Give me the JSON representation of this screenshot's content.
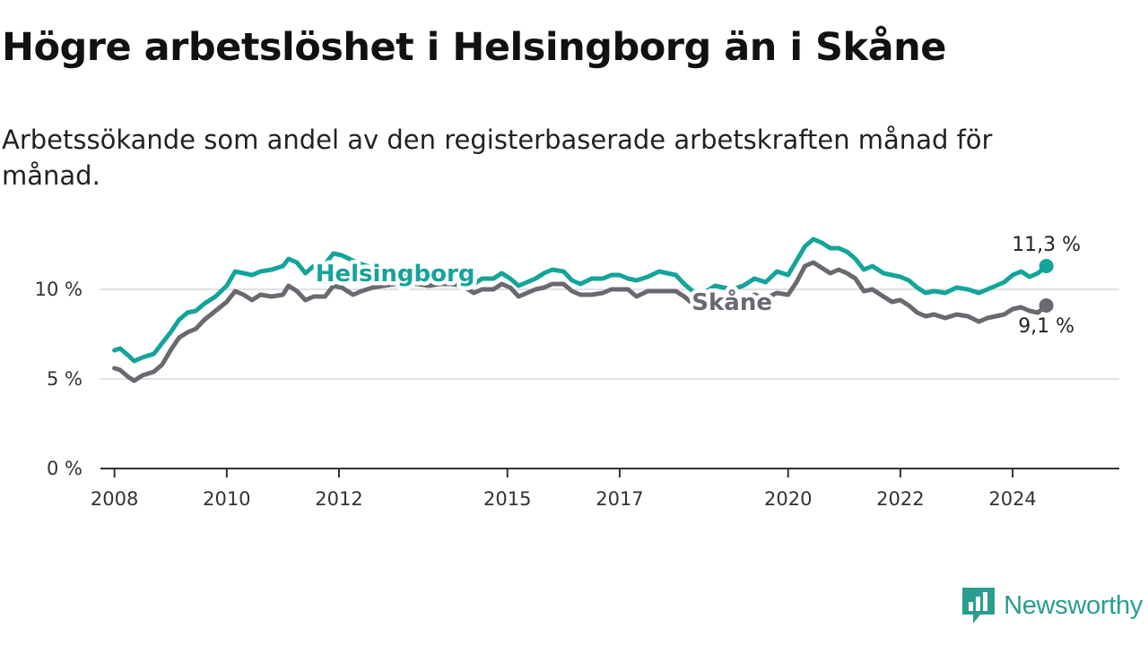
{
  "header": {
    "title": "Högre arbetslöshet i Helsingborg än i Skåne",
    "subtitle": "Arbetssökande som andel av den registerbaserade arbetskraften månad för månad."
  },
  "brand": {
    "name": "Newsworthy",
    "color": "#2a9d8f"
  },
  "chart_data": {
    "type": "line",
    "title": "Högre arbetslöshet i Helsingborg än i Skåne",
    "subtitle": "Arbetssökande som andel av den registerbaserade arbetskraften månad för månad.",
    "xlabel": "",
    "ylabel": "",
    "xlim": [
      2007.75,
      2025.9
    ],
    "ylim": [
      0,
      13.5
    ],
    "grid": true,
    "x_ticks": [
      2008,
      2010,
      2012,
      2015,
      2017,
      2020,
      2022,
      2024
    ],
    "x_tick_labels": [
      "2008",
      "2010",
      "2012",
      "2015",
      "2017",
      "2020",
      "2022",
      "2024"
    ],
    "y_ticks": [
      0,
      5,
      10
    ],
    "y_tick_labels": [
      "0 %",
      "5 %",
      "10 %"
    ],
    "series": [
      {
        "name": "Helsingborg",
        "label": "Helsingborg",
        "color": "#13a49a",
        "end_label": "11,3 %",
        "points": [
          [
            2008.0,
            6.6
          ],
          [
            2008.1,
            6.7
          ],
          [
            2008.25,
            6.3
          ],
          [
            2008.35,
            6.0
          ],
          [
            2008.5,
            6.2
          ],
          [
            2008.7,
            6.4
          ],
          [
            2008.85,
            7.0
          ],
          [
            2009.0,
            7.6
          ],
          [
            2009.15,
            8.3
          ],
          [
            2009.3,
            8.7
          ],
          [
            2009.45,
            8.8
          ],
          [
            2009.6,
            9.2
          ],
          [
            2009.8,
            9.6
          ],
          [
            2010.0,
            10.2
          ],
          [
            2010.15,
            11.0
          ],
          [
            2010.3,
            10.9
          ],
          [
            2010.45,
            10.8
          ],
          [
            2010.6,
            11.0
          ],
          [
            2010.8,
            11.1
          ],
          [
            2011.0,
            11.3
          ],
          [
            2011.1,
            11.7
          ],
          [
            2011.25,
            11.5
          ],
          [
            2011.4,
            10.9
          ],
          [
            2011.55,
            11.3
          ],
          [
            2011.75,
            11.4
          ],
          [
            2011.9,
            12.0
          ],
          [
            2012.05,
            11.9
          ],
          [
            2012.25,
            11.6
          ],
          [
            2012.4,
            11.4
          ],
          [
            2012.6,
            11.2
          ],
          [
            2012.8,
            11.0
          ],
          [
            2013.0,
            10.9
          ],
          [
            2013.2,
            10.7
          ],
          [
            2013.4,
            10.9
          ],
          [
            2013.6,
            10.7
          ],
          [
            2013.8,
            10.8
          ],
          [
            2014.0,
            10.7
          ],
          [
            2014.2,
            10.8
          ],
          [
            2014.4,
            10.3
          ],
          [
            2014.55,
            10.6
          ],
          [
            2014.75,
            10.6
          ],
          [
            2014.9,
            10.9
          ],
          [
            2015.05,
            10.6
          ],
          [
            2015.2,
            10.2
          ],
          [
            2015.35,
            10.4
          ],
          [
            2015.5,
            10.6
          ],
          [
            2015.65,
            10.9
          ],
          [
            2015.8,
            11.1
          ],
          [
            2016.0,
            11.0
          ],
          [
            2016.15,
            10.5
          ],
          [
            2016.3,
            10.3
          ],
          [
            2016.5,
            10.6
          ],
          [
            2016.7,
            10.6
          ],
          [
            2016.85,
            10.8
          ],
          [
            2017.0,
            10.8
          ],
          [
            2017.15,
            10.6
          ],
          [
            2017.3,
            10.5
          ],
          [
            2017.5,
            10.7
          ],
          [
            2017.7,
            11.0
          ],
          [
            2017.85,
            10.9
          ],
          [
            2018.0,
            10.8
          ],
          [
            2018.15,
            10.3
          ],
          [
            2018.3,
            9.9
          ],
          [
            2018.5,
            9.8
          ],
          [
            2018.7,
            10.2
          ],
          [
            2018.85,
            10.1
          ],
          [
            2019.0,
            10.0
          ],
          [
            2019.2,
            10.2
          ],
          [
            2019.4,
            10.6
          ],
          [
            2019.6,
            10.4
          ],
          [
            2019.8,
            11.0
          ],
          [
            2020.0,
            10.8
          ],
          [
            2020.15,
            11.6
          ],
          [
            2020.3,
            12.4
          ],
          [
            2020.45,
            12.8
          ],
          [
            2020.6,
            12.6
          ],
          [
            2020.75,
            12.3
          ],
          [
            2020.9,
            12.3
          ],
          [
            2021.05,
            12.1
          ],
          [
            2021.2,
            11.7
          ],
          [
            2021.35,
            11.1
          ],
          [
            2021.5,
            11.3
          ],
          [
            2021.7,
            10.9
          ],
          [
            2021.85,
            10.8
          ],
          [
            2022.0,
            10.7
          ],
          [
            2022.15,
            10.5
          ],
          [
            2022.3,
            10.1
          ],
          [
            2022.45,
            9.8
          ],
          [
            2022.6,
            9.9
          ],
          [
            2022.8,
            9.8
          ],
          [
            2023.0,
            10.1
          ],
          [
            2023.2,
            10.0
          ],
          [
            2023.4,
            9.8
          ],
          [
            2023.55,
            10.0
          ],
          [
            2023.7,
            10.2
          ],
          [
            2023.85,
            10.4
          ],
          [
            2024.0,
            10.8
          ],
          [
            2024.15,
            11.0
          ],
          [
            2024.3,
            10.7
          ],
          [
            2024.45,
            10.9
          ],
          [
            2024.6,
            11.3
          ]
        ]
      },
      {
        "name": "Skåne",
        "label": "Skåne",
        "color": "#6b6870",
        "end_label": "9,1 %",
        "points": [
          [
            2008.0,
            5.6
          ],
          [
            2008.1,
            5.5
          ],
          [
            2008.25,
            5.1
          ],
          [
            2008.35,
            4.9
          ],
          [
            2008.5,
            5.2
          ],
          [
            2008.7,
            5.4
          ],
          [
            2008.85,
            5.8
          ],
          [
            2009.0,
            6.6
          ],
          [
            2009.15,
            7.3
          ],
          [
            2009.3,
            7.6
          ],
          [
            2009.45,
            7.8
          ],
          [
            2009.6,
            8.3
          ],
          [
            2009.8,
            8.8
          ],
          [
            2010.0,
            9.3
          ],
          [
            2010.15,
            9.9
          ],
          [
            2010.3,
            9.7
          ],
          [
            2010.45,
            9.4
          ],
          [
            2010.6,
            9.7
          ],
          [
            2010.8,
            9.6
          ],
          [
            2011.0,
            9.7
          ],
          [
            2011.1,
            10.2
          ],
          [
            2011.25,
            9.9
          ],
          [
            2011.4,
            9.4
          ],
          [
            2011.55,
            9.6
          ],
          [
            2011.75,
            9.6
          ],
          [
            2011.9,
            10.2
          ],
          [
            2012.05,
            10.1
          ],
          [
            2012.25,
            9.7
          ],
          [
            2012.4,
            9.9
          ],
          [
            2012.6,
            10.1
          ],
          [
            2012.8,
            10.2
          ],
          [
            2013.0,
            10.3
          ],
          [
            2013.2,
            10.4
          ],
          [
            2013.4,
            10.3
          ],
          [
            2013.6,
            10.2
          ],
          [
            2013.8,
            10.3
          ],
          [
            2014.0,
            10.3
          ],
          [
            2014.2,
            10.2
          ],
          [
            2014.4,
            9.8
          ],
          [
            2014.55,
            10.0
          ],
          [
            2014.75,
            10.0
          ],
          [
            2014.9,
            10.3
          ],
          [
            2015.05,
            10.1
          ],
          [
            2015.2,
            9.6
          ],
          [
            2015.35,
            9.8
          ],
          [
            2015.5,
            10.0
          ],
          [
            2015.65,
            10.1
          ],
          [
            2015.8,
            10.3
          ],
          [
            2016.0,
            10.3
          ],
          [
            2016.15,
            9.9
          ],
          [
            2016.3,
            9.7
          ],
          [
            2016.5,
            9.7
          ],
          [
            2016.7,
            9.8
          ],
          [
            2016.85,
            10.0
          ],
          [
            2017.0,
            10.0
          ],
          [
            2017.15,
            10.0
          ],
          [
            2017.3,
            9.6
          ],
          [
            2017.5,
            9.9
          ],
          [
            2017.7,
            9.9
          ],
          [
            2017.85,
            9.9
          ],
          [
            2018.0,
            9.9
          ],
          [
            2018.15,
            9.6
          ],
          [
            2018.3,
            9.2
          ],
          [
            2018.5,
            9.0
          ],
          [
            2018.7,
            9.2
          ],
          [
            2018.85,
            9.3
          ],
          [
            2019.0,
            9.3
          ],
          [
            2019.2,
            9.5
          ],
          [
            2019.4,
            9.7
          ],
          [
            2019.6,
            9.5
          ],
          [
            2019.8,
            9.8
          ],
          [
            2020.0,
            9.7
          ],
          [
            2020.15,
            10.4
          ],
          [
            2020.3,
            11.3
          ],
          [
            2020.45,
            11.5
          ],
          [
            2020.6,
            11.2
          ],
          [
            2020.75,
            10.9
          ],
          [
            2020.9,
            11.1
          ],
          [
            2021.05,
            10.9
          ],
          [
            2021.2,
            10.6
          ],
          [
            2021.35,
            9.9
          ],
          [
            2021.5,
            10.0
          ],
          [
            2021.7,
            9.6
          ],
          [
            2021.85,
            9.3
          ],
          [
            2022.0,
            9.4
          ],
          [
            2022.15,
            9.1
          ],
          [
            2022.3,
            8.7
          ],
          [
            2022.45,
            8.5
          ],
          [
            2022.6,
            8.6
          ],
          [
            2022.8,
            8.4
          ],
          [
            2023.0,
            8.6
          ],
          [
            2023.2,
            8.5
          ],
          [
            2023.4,
            8.2
          ],
          [
            2023.55,
            8.4
          ],
          [
            2023.7,
            8.5
          ],
          [
            2023.85,
            8.6
          ],
          [
            2024.0,
            8.9
          ],
          [
            2024.15,
            9.0
          ],
          [
            2024.3,
            8.8
          ],
          [
            2024.45,
            8.7
          ],
          [
            2024.6,
            9.1
          ]
        ]
      }
    ],
    "annotations": [
      {
        "series": "Helsingborg",
        "text": "Helsingborg",
        "at_x": 2013.0
      },
      {
        "series": "Skåne",
        "text": "Skåne",
        "at_x": 2019.0
      }
    ]
  }
}
